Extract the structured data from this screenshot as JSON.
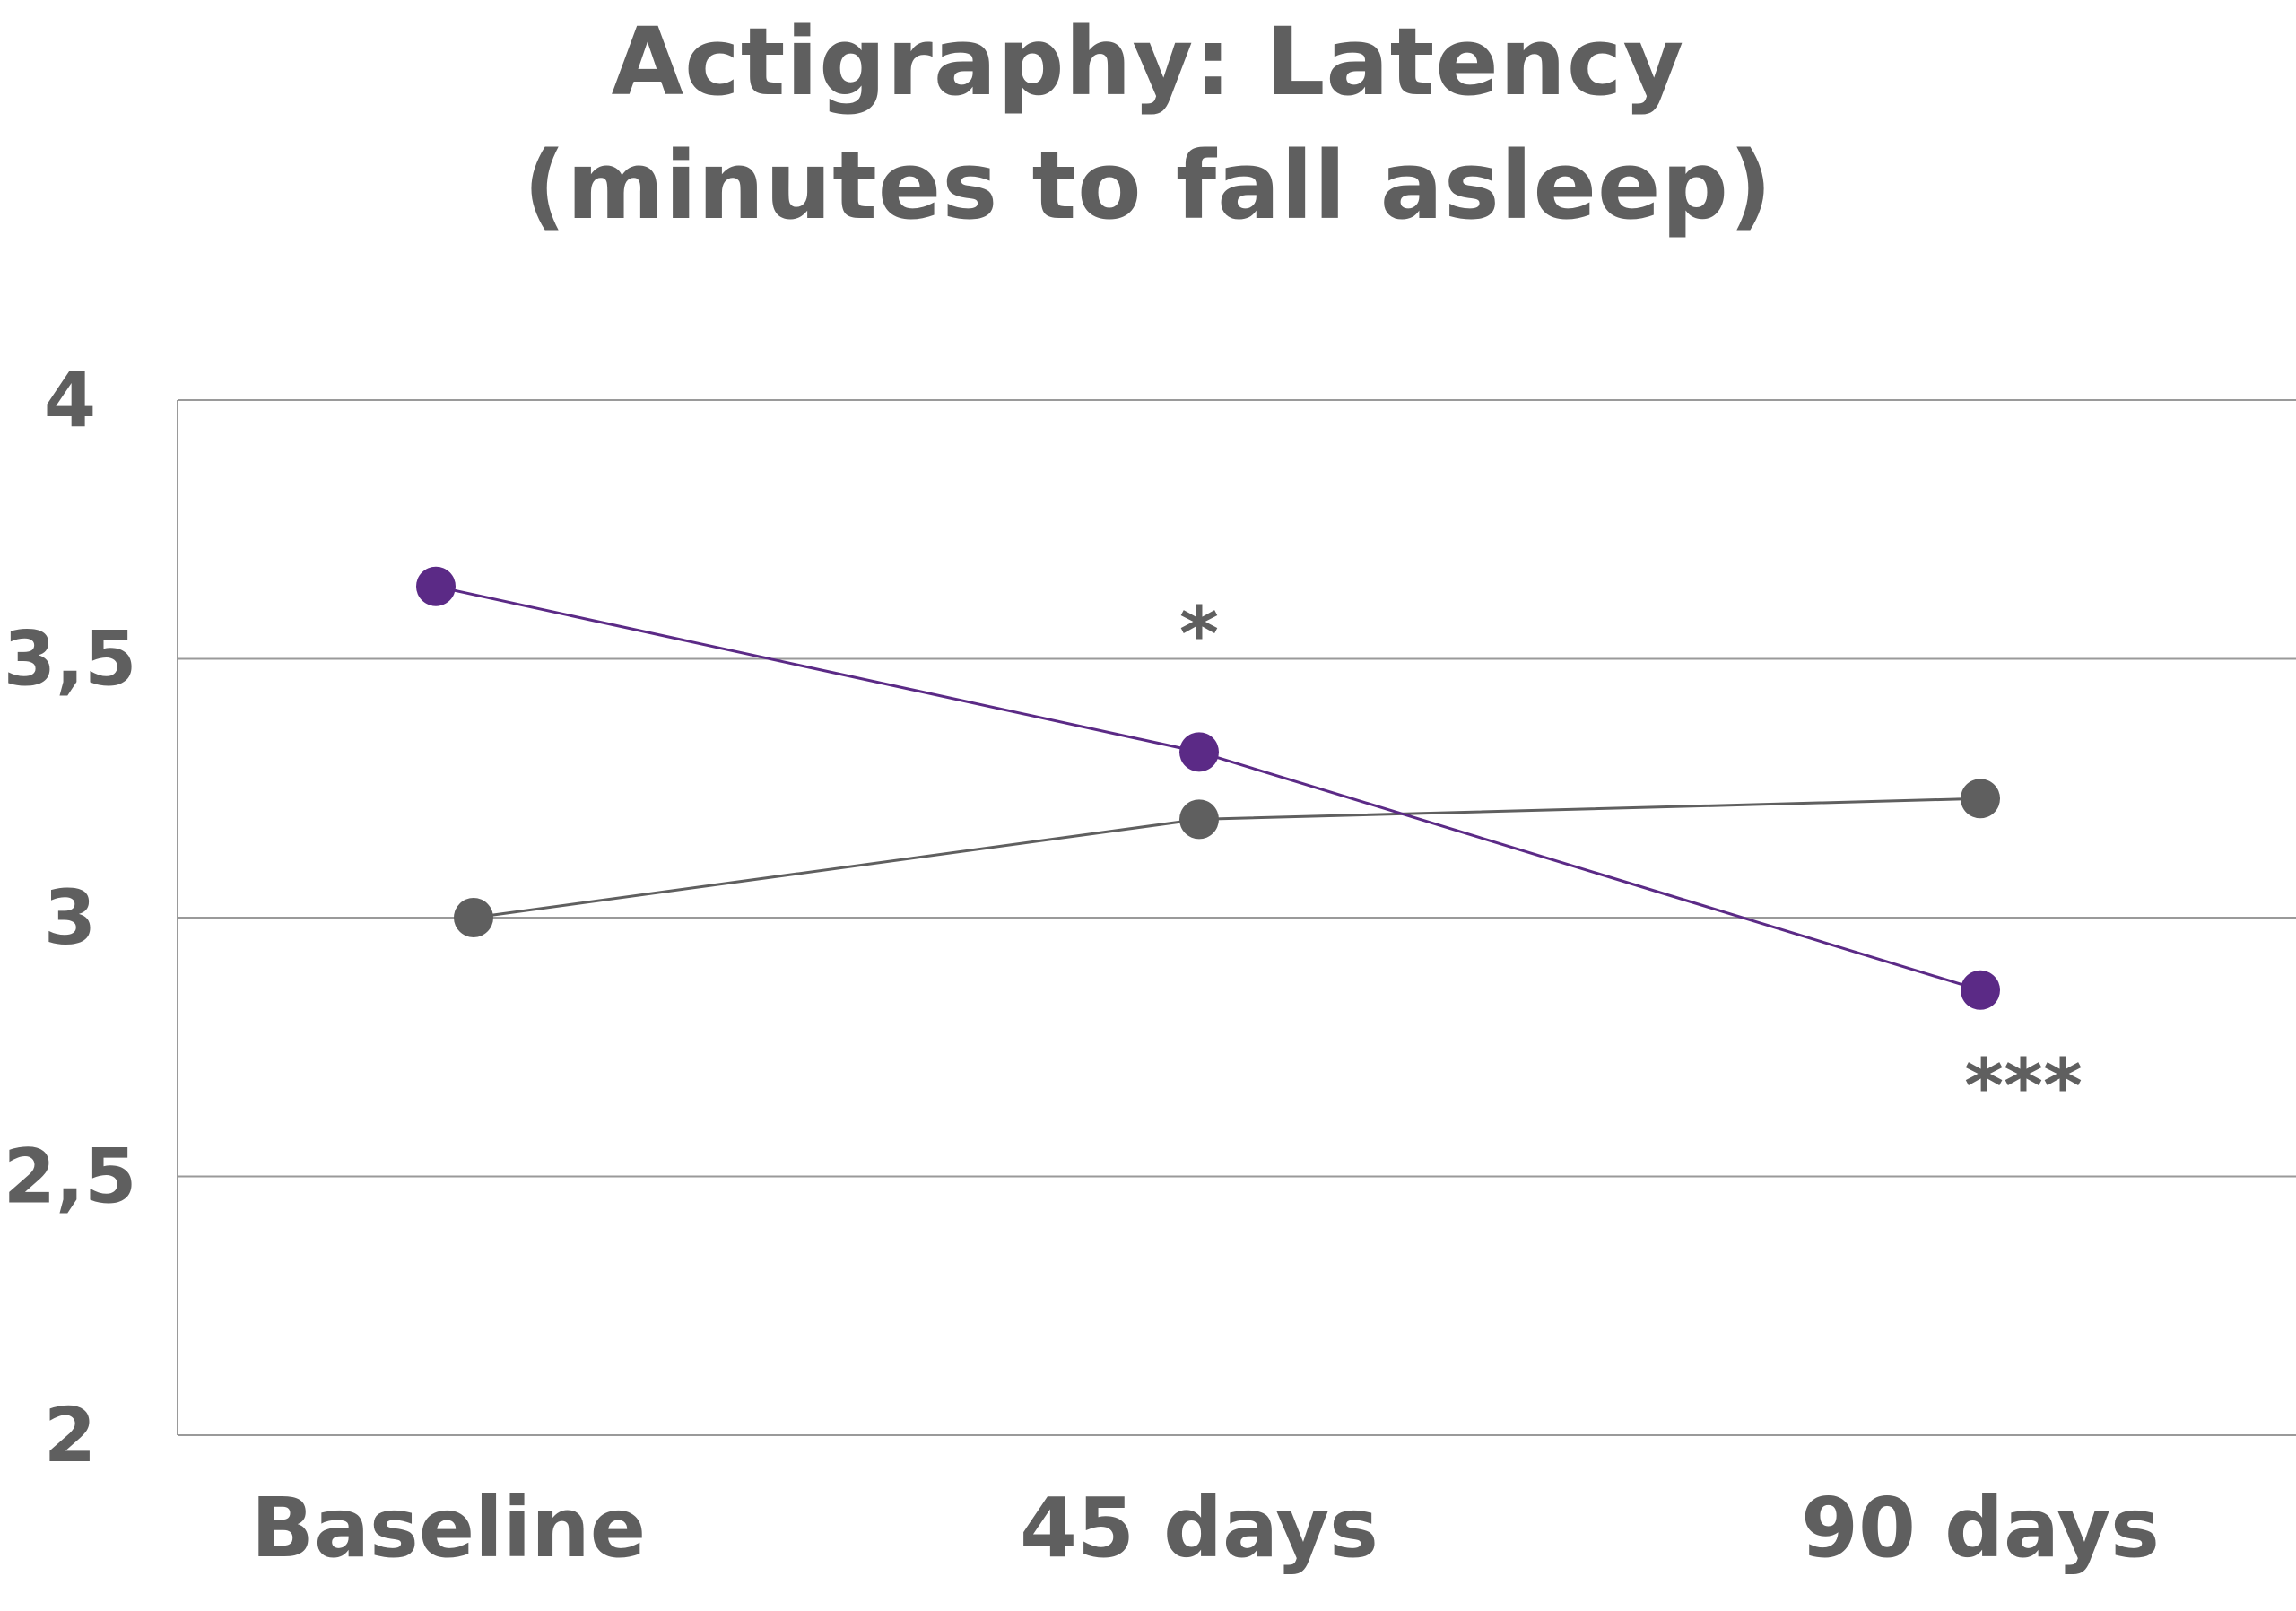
{
  "chart_data": {
    "type": "line",
    "title_line1": "Actigraphy: Latency",
    "title_line2": "(minutes to fall asleep)",
    "categories": [
      "Baseline",
      "45 days",
      "90 days"
    ],
    "ylim": [
      2,
      4
    ],
    "yticks": [
      4,
      3.5,
      3,
      2.5,
      2
    ],
    "ytick_labels": [
      "4",
      "3,5",
      "3",
      "2,5",
      "2"
    ],
    "grid": true,
    "series": [
      {
        "color": "#5b2a86",
        "values": [
          3.64,
          3.32,
          2.86
        ]
      },
      {
        "color": "#5f5f5f",
        "values": [
          3.0,
          3.19,
          3.23
        ]
      }
    ],
    "annotations": [
      {
        "text": "*",
        "category": "45 days"
      },
      {
        "text": "***",
        "category": "90 days"
      }
    ]
  }
}
